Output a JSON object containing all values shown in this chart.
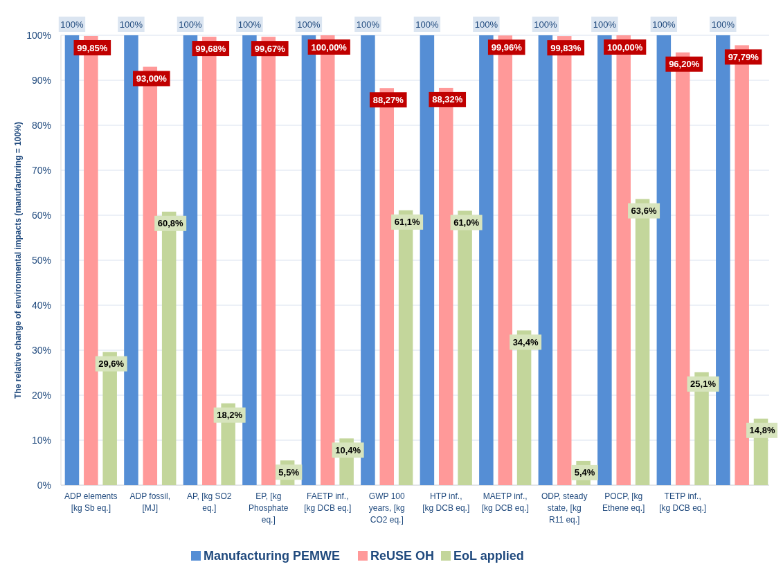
{
  "chart_data": {
    "type": "bar",
    "ylabel": "The relative change of environmental impacts (manufacturing = 100%)",
    "categories": [
      "ADP elements [kg Sb eq.]",
      "ADP fossil, [MJ]",
      "AP, [kg SO2 eq.]",
      "EP, [kg Phosphate eq.]",
      "FAETP inf., [kg DCB eq.]",
      "GWP 100 years, [kg CO2 eq.]",
      "HTP inf., [kg DCB eq.]",
      "MAETP inf., [kg DCB eq.]",
      "ODP, steady state, [kg R11 eq.]",
      "POCP, [kg Ethene eq.]",
      "TETP inf., [kg DCB eq.]",
      null
    ],
    "series": [
      {
        "name": "Manufacturing PEMWE",
        "color": "#558ed5",
        "values": [
          100,
          100,
          100,
          100,
          100,
          100,
          100,
          100,
          100,
          100,
          100,
          100
        ],
        "value_labels": [
          "100%",
          "100%",
          "100%",
          "100%",
          "100%",
          "100%",
          "100%",
          "100%",
          "100%",
          "100%",
          "100%",
          "100%"
        ]
      },
      {
        "name": "ReUSE OH",
        "color": "#ff9999",
        "values": [
          99.85,
          93.0,
          99.68,
          99.67,
          100.0,
          88.27,
          88.32,
          99.96,
          99.83,
          100.0,
          96.2,
          97.79
        ],
        "value_labels": [
          "99,85%",
          "93,00%",
          "99,68%",
          "99,67%",
          "100,00%",
          "88,27%",
          "88,32%",
          "99,96%",
          "99,83%",
          "100,00%",
          "96,20%",
          "97,79%"
        ]
      },
      {
        "name": "EoL applied",
        "color": "#c3d69b",
        "values": [
          29.6,
          60.8,
          18.2,
          5.5,
          10.4,
          61.1,
          61.0,
          34.4,
          5.4,
          63.6,
          25.1,
          14.8
        ],
        "value_labels": [
          "29,6%",
          "60,8%",
          "18,2%",
          "5,5%",
          "10,4%",
          "61,1%",
          "61,0%",
          "34,4%",
          "5,4%",
          "63,6%",
          "25,1%",
          "14,8%"
        ]
      }
    ],
    "ylim": [
      0,
      100
    ],
    "yticks": [
      {
        "value": 0,
        "label": "0%"
      },
      {
        "value": 10,
        "label": "10%"
      },
      {
        "value": 20,
        "label": "20%"
      },
      {
        "value": 30,
        "label": "30%"
      },
      {
        "value": 40,
        "label": "40%"
      },
      {
        "value": 50,
        "label": "50%"
      },
      {
        "value": 60,
        "label": "60%"
      },
      {
        "value": 70,
        "label": "70%"
      },
      {
        "value": 80,
        "label": "80%"
      },
      {
        "value": 90,
        "label": "90%"
      },
      {
        "value": 100,
        "label": "100%"
      }
    ],
    "grid": "y",
    "legend": "bottom"
  }
}
